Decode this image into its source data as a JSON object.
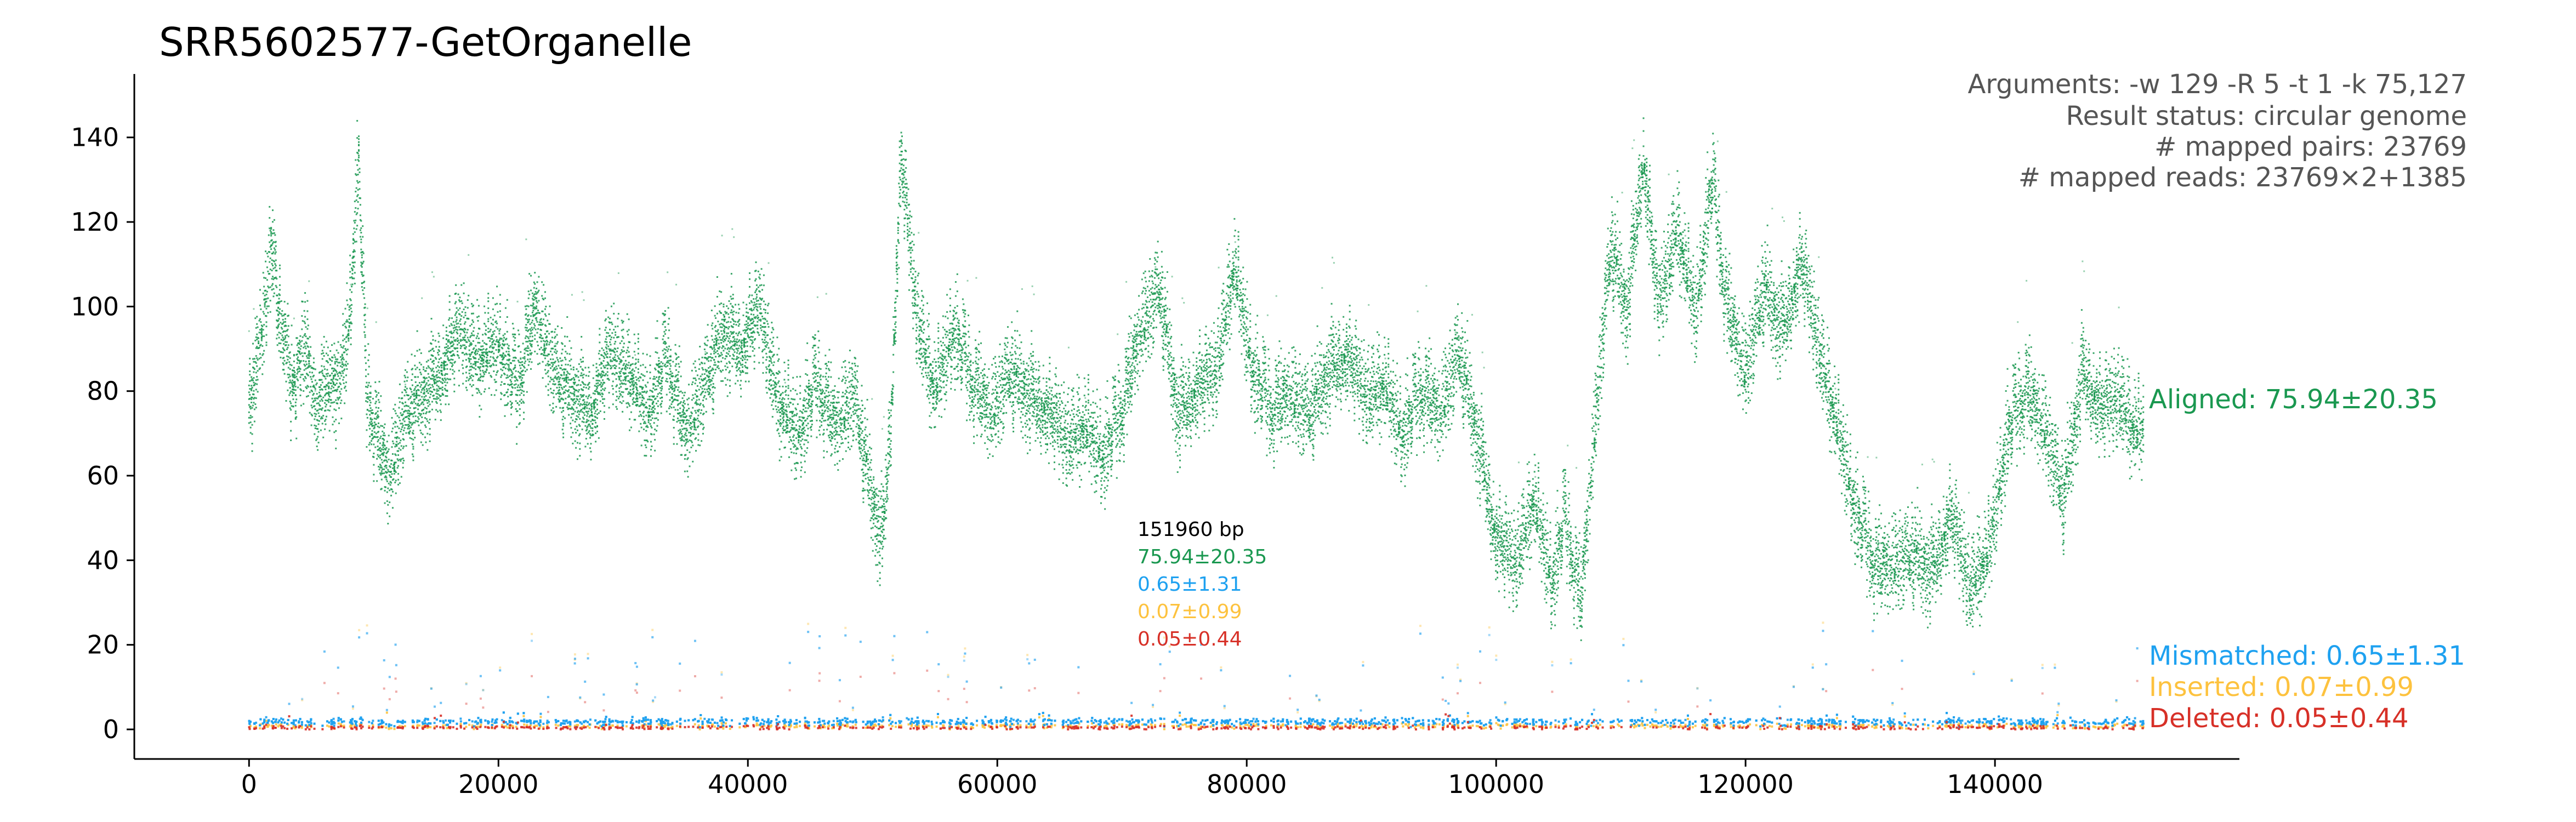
{
  "chart_data": {
    "type": "scatter",
    "title": "SRR5602577-GetOrganelle",
    "xlabel": "",
    "ylabel": "",
    "xlim": [
      -9200,
      159600
    ],
    "ylim": [
      -7,
      155
    ],
    "x_ticks": [
      0,
      20000,
      40000,
      60000,
      80000,
      100000,
      120000,
      140000
    ],
    "y_ticks": [
      0,
      20,
      40,
      60,
      80,
      100,
      120,
      140
    ],
    "x_tick_labels": [
      "0",
      "20000",
      "40000",
      "60000",
      "80000",
      "100000",
      "120000",
      "140000"
    ],
    "y_tick_labels": [
      "0",
      "20",
      "40",
      "60",
      "80",
      "100",
      "120",
      "140"
    ],
    "grid": false,
    "genome_length": 151960,
    "info_lines": [
      "Arguments: -w 129 -R 5 -t 1 -k 75,127",
      "Result status: circular genome",
      "# mapped pairs: 23769",
      "# mapped reads: 23769×2+1385"
    ],
    "stats_box": {
      "length_label": "151960 bp",
      "aligned": "75.94±20.35",
      "mismatched": "0.65±1.31",
      "inserted": "0.07±0.99",
      "deleted": "0.05±0.44"
    },
    "series": [
      {
        "name": "Aligned: 75.94±20.35",
        "color": "#1a9850",
        "mean": 75.94,
        "sd": 20.35,
        "profile": {
          "x": [
            0,
            1000,
            1800,
            2600,
            3500,
            4500,
            5500,
            6200,
            7000,
            8000,
            8800,
            9400,
            10200,
            11200,
            12500,
            14000,
            15500,
            17000,
            18500,
            20000,
            21500,
            23000,
            24500,
            26000,
            27500,
            29000,
            30500,
            32000,
            33500,
            35000,
            36500,
            38000,
            39500,
            41000,
            42500,
            44000,
            45500,
            47000,
            48500,
            50000,
            50800,
            51500,
            52300,
            53500,
            55000,
            56500,
            58000,
            59500,
            61000,
            62500,
            64000,
            65500,
            67000,
            68500,
            70000,
            71500,
            73000,
            74500,
            76000,
            77500,
            79000,
            80500,
            82000,
            83500,
            85000,
            86500,
            88000,
            89500,
            91000,
            92500,
            94000,
            95500,
            97000,
            98500,
            100000,
            101500,
            103000,
            104500,
            105500,
            106800,
            108000,
            109200,
            110500,
            111800,
            113000,
            114500,
            116000,
            117300,
            118500,
            120000,
            121500,
            123000,
            124500,
            126000,
            127500,
            129000,
            130500,
            132000,
            133500,
            135000,
            136500,
            138000,
            139500,
            141000,
            142500,
            144000,
            145500,
            147000,
            148500,
            150000,
            151000,
            151960
          ],
          "y": [
            75,
            95,
            115,
            95,
            80,
            92,
            75,
            85,
            78,
            95,
            135,
            80,
            70,
            60,
            75,
            80,
            85,
            95,
            88,
            92,
            80,
            100,
            85,
            80,
            75,
            90,
            85,
            75,
            88,
            70,
            82,
            95,
            90,
            100,
            78,
            70,
            82,
            72,
            80,
            55,
            45,
            75,
            135,
            100,
            80,
            95,
            82,
            75,
            85,
            80,
            75,
            70,
            72,
            65,
            75,
            95,
            105,
            75,
            80,
            85,
            110,
            85,
            75,
            80,
            75,
            85,
            88,
            80,
            82,
            70,
            80,
            75,
            90,
            70,
            45,
            40,
            55,
            35,
            50,
            30,
            75,
            115,
            100,
            135,
            100,
            120,
            98,
            130,
            100,
            85,
            105,
            95,
            110,
            90,
            70,
            50,
            38,
            40,
            42,
            38,
            50,
            35,
            42,
            70,
            80,
            72,
            55,
            85,
            75,
            80,
            72,
            70
          ]
        },
        "noise": 16,
        "spike_max": 26,
        "density": 2400
      },
      {
        "name": "Mismatched: 0.65±1.31",
        "color": "#1ea1f0",
        "mean": 0.65,
        "sd": 1.31,
        "base": 1.8,
        "noise": 0.9,
        "scatter_max": 22,
        "density": 2600
      },
      {
        "name": "Inserted: 0.07±0.99",
        "color": "#fdc23e",
        "mean": 0.07,
        "sd": 0.99,
        "base": 0.8,
        "noise": 0.6,
        "scatter_max": 25,
        "density": 900
      },
      {
        "name": "Deleted: 0.05±0.44",
        "color": "#d73027",
        "mean": 0.05,
        "sd": 0.44,
        "base": 0.4,
        "noise": 0.5,
        "scatter_max": 14,
        "density": 700
      }
    ],
    "legend_placement": "right of plot, each label at its series level"
  }
}
